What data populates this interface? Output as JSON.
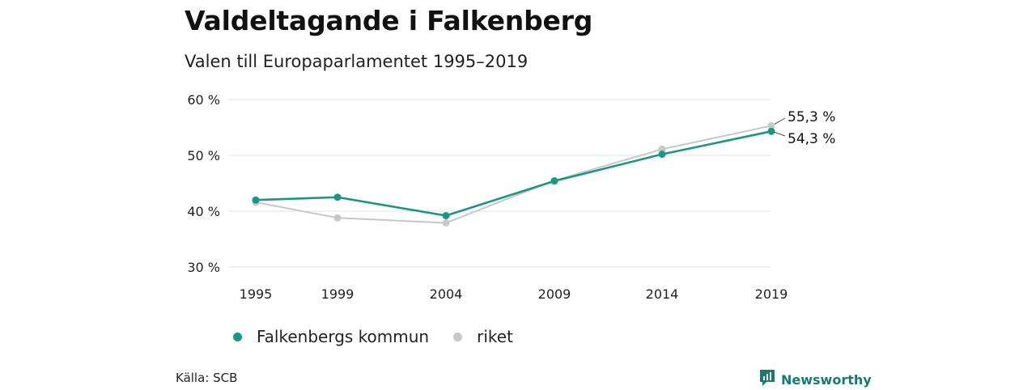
{
  "header": {
    "title": "Valdeltagande i Falkenberg",
    "subtitle": "Valen till Europaparlamentet 1995–2019"
  },
  "chart_data": {
    "type": "line",
    "x": [
      "1995",
      "1999",
      "2004",
      "2009",
      "2014",
      "2019"
    ],
    "ylim": [
      30,
      60
    ],
    "yticks": [
      30,
      40,
      50,
      60
    ],
    "ytick_labels": [
      "30 %",
      "40 %",
      "50 %",
      "60 %"
    ],
    "grid": true,
    "legend_position": "bottom",
    "series": [
      {
        "name": "Falkenbergs kommun",
        "color": "#1a9683",
        "values": [
          42.0,
          42.5,
          39.2,
          45.4,
          50.2,
          54.3
        ],
        "end_label": "54,3 %"
      },
      {
        "name": "riket",
        "color": "#c8c8c8",
        "values": [
          41.6,
          38.8,
          37.9,
          45.5,
          51.1,
          55.3
        ],
        "end_label": "55,3 %"
      }
    ]
  },
  "footer": {
    "source": "Källa: SCB",
    "brand": "Newsworthy",
    "brand_icon": "newsworthy-logo-icon"
  }
}
